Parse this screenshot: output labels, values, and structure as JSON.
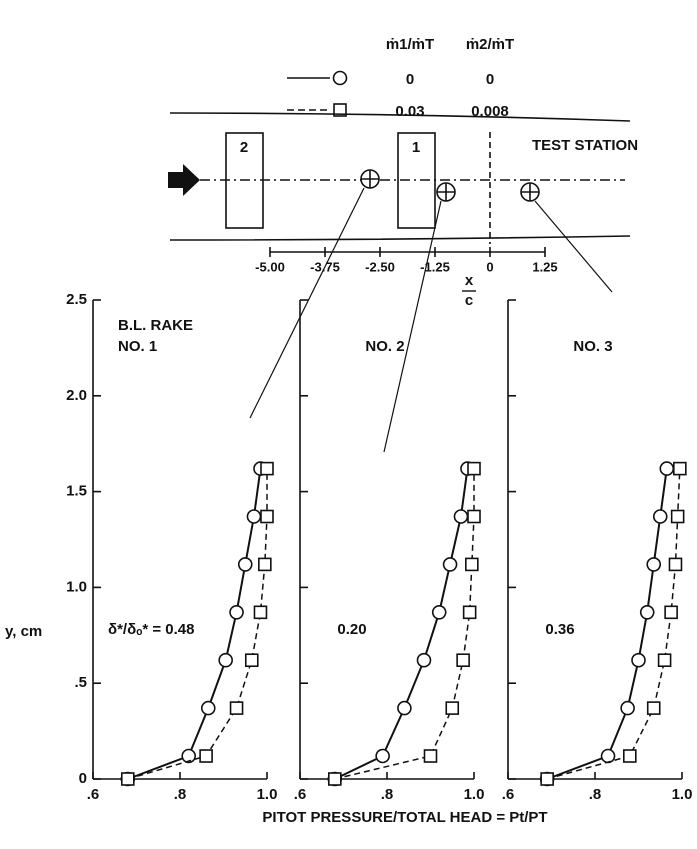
{
  "legend": {
    "headers": [
      "ṁ1/ṁT",
      "ṁ2/ṁT"
    ],
    "rows": [
      [
        "0",
        "0"
      ],
      [
        "0.03",
        "0.008"
      ]
    ]
  },
  "station": {
    "label": "TEST STATION",
    "boxes": [
      "2",
      "1"
    ],
    "x_label_num": "x",
    "x_label_den": "c",
    "ticks": [
      {
        "value": -5,
        "label": "-5.00"
      },
      -3.75,
      {
        "value": -2.5,
        "label": "-2.50"
      },
      -1.25,
      0,
      1.25
    ]
  },
  "chart_data": [
    {
      "type": "line",
      "annotation": "B.L. RAKE",
      "annotation2": "NO. 1",
      "ratio": "δ*/δₒ* = 0.48",
      "y_label": "y, cm",
      "x_label": "PITOT PRESSURE/TOTAL HEAD = Pt/PT",
      "xlim": [
        0.6,
        1.0
      ],
      "ylim": [
        0,
        2.5
      ],
      "xticks": [
        {
          "value": 0.6,
          "label": ".6"
        },
        {
          "value": 0.8,
          "label": ".8"
        },
        {
          "value": 1.0,
          "label": "1.0"
        }
      ],
      "yticks": [
        0,
        {
          "value": 0.5,
          "label": ".5"
        },
        {
          "value": 1.0,
          "label": "1.0"
        },
        {
          "value": 1.5,
          "label": "1.5"
        },
        {
          "value": 2.0,
          "label": "2.0"
        },
        {
          "value": 2.5,
          "label": "2.5"
        }
      ],
      "series": [
        {
          "color": "#111",
          "dash": "solid",
          "marker": "circle",
          "x": [
            0.68,
            0.82,
            0.865,
            0.905,
            0.93,
            0.95,
            0.97,
            0.985
          ],
          "values": [
            0,
            0.12,
            0.37,
            0.62,
            0.87,
            1.12,
            1.37,
            1.62
          ]
        },
        {
          "color": "#111",
          "dash": "dashed",
          "marker": "square",
          "x": [
            0.68,
            0.86,
            0.93,
            0.965,
            0.985,
            0.995,
            1.0,
            1.0
          ],
          "values": [
            0,
            0.12,
            0.37,
            0.62,
            0.87,
            1.12,
            1.37,
            1.62
          ]
        }
      ]
    },
    {
      "type": "line",
      "annotation": "NO. 2",
      "ratio": "0.20",
      "xlim": [
        0.6,
        1.0
      ],
      "ylim": [
        0,
        2.5
      ],
      "xticks": [
        {
          "value": 0.6,
          "label": ".6"
        },
        {
          "value": 0.8,
          "label": ".8"
        },
        {
          "value": 1.0,
          "label": "1.0"
        }
      ],
      "yticks": [
        0,
        0.5,
        1.0,
        1.5,
        2.0,
        2.5
      ],
      "series": [
        {
          "color": "#111",
          "dash": "solid",
          "marker": "circle",
          "x": [
            0.68,
            0.79,
            0.84,
            0.885,
            0.92,
            0.945,
            0.97,
            0.985
          ],
          "values": [
            0,
            0.12,
            0.37,
            0.62,
            0.87,
            1.12,
            1.37,
            1.62
          ]
        },
        {
          "color": "#111",
          "dash": "dashed",
          "marker": "square",
          "x": [
            0.68,
            0.9,
            0.95,
            0.975,
            0.99,
            0.995,
            1.0,
            1.0
          ],
          "values": [
            0,
            0.12,
            0.37,
            0.62,
            0.87,
            1.12,
            1.37,
            1.62
          ]
        }
      ]
    },
    {
      "type": "line",
      "annotation": "NO. 3",
      "ratio": "0.36",
      "xlim": [
        0.6,
        1.0
      ],
      "ylim": [
        0,
        2.5
      ],
      "xticks": [
        {
          "value": 0.6,
          "label": ".6"
        },
        {
          "value": 0.8,
          "label": ".8"
        },
        {
          "value": 1.0,
          "label": "1.0"
        }
      ],
      "yticks": [
        0,
        0.5,
        1.0,
        1.5,
        2.0,
        2.5
      ],
      "series": [
        {
          "color": "#111",
          "dash": "solid",
          "marker": "circle",
          "x": [
            0.69,
            0.83,
            0.875,
            0.9,
            0.92,
            0.935,
            0.95,
            0.965
          ],
          "values": [
            0,
            0.12,
            0.37,
            0.62,
            0.87,
            1.12,
            1.37,
            1.62
          ]
        },
        {
          "color": "#111",
          "dash": "dashed",
          "marker": "square",
          "x": [
            0.69,
            0.88,
            0.935,
            0.96,
            0.975,
            0.985,
            0.99,
            0.995
          ],
          "values": [
            0,
            0.12,
            0.37,
            0.62,
            0.87,
            1.12,
            1.37,
            1.62
          ]
        }
      ]
    }
  ]
}
